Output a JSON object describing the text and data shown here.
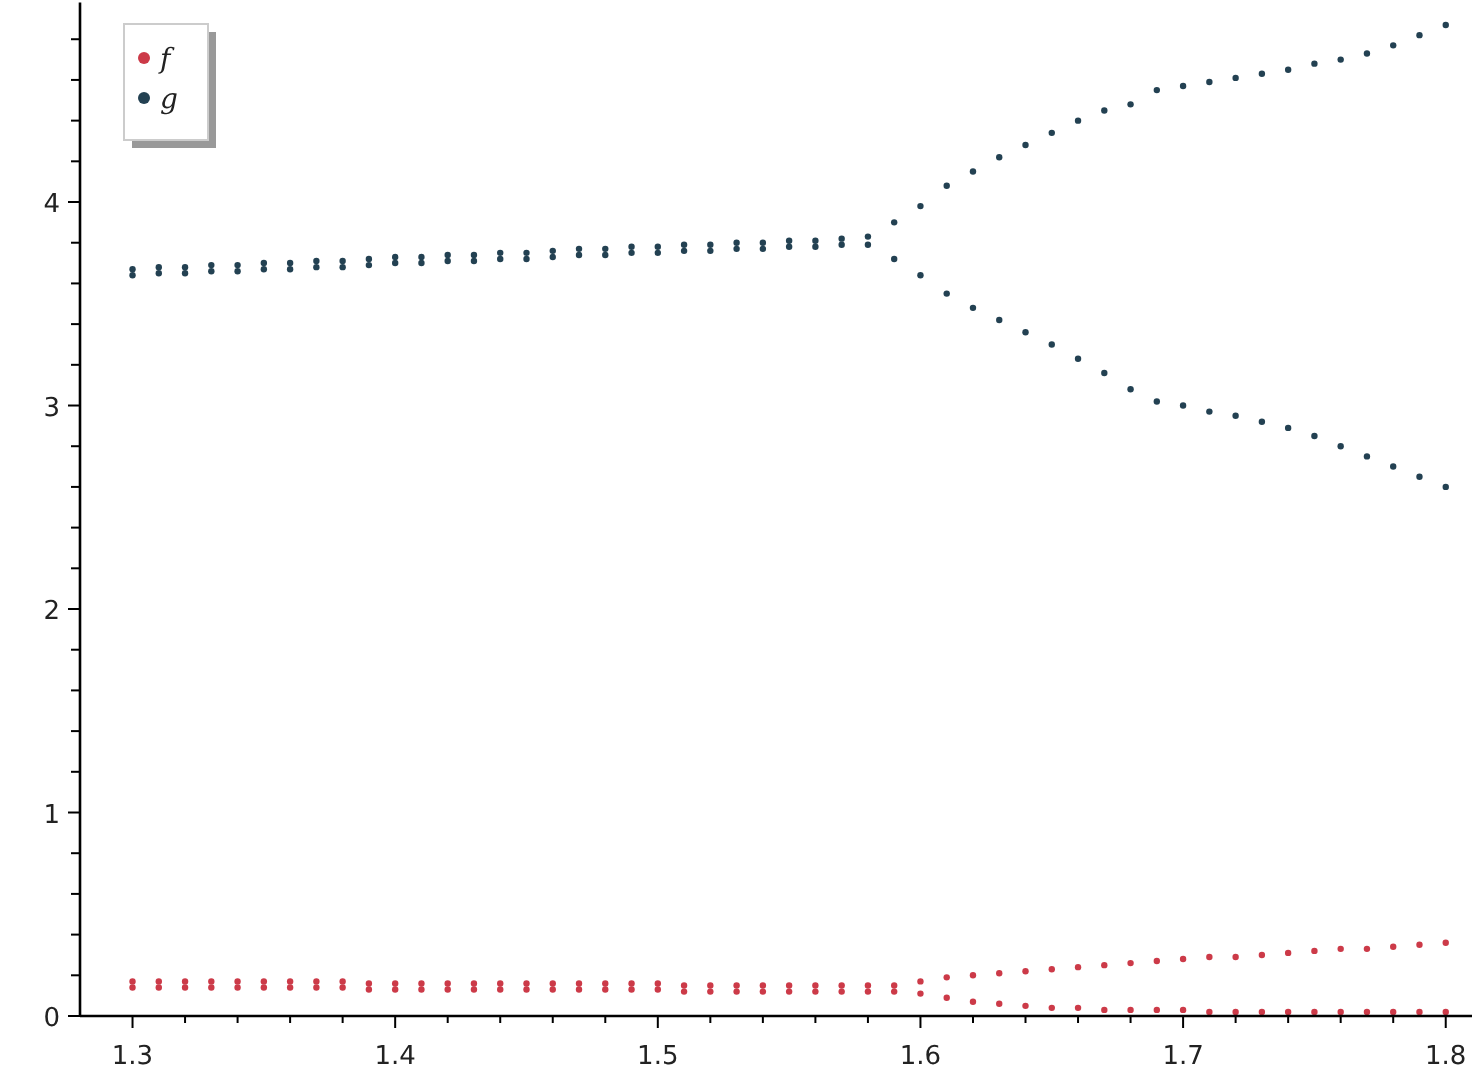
{
  "chart_data": {
    "type": "scatter",
    "marker": "circle",
    "legend": "top left",
    "grid": false,
    "xlim": [
      1.28,
      1.81
    ],
    "ylim": [
      0,
      4.98
    ],
    "xticks": [
      {
        "value": 1.3,
        "label": "1.3"
      },
      {
        "value": 1.32,
        "label": null
      },
      {
        "value": 1.34,
        "label": null
      },
      {
        "value": 1.36,
        "label": null
      },
      {
        "value": 1.38,
        "label": null
      },
      {
        "value": 1.4,
        "label": "1.4"
      },
      {
        "value": 1.42,
        "label": null
      },
      {
        "value": 1.44,
        "label": null
      },
      {
        "value": 1.46,
        "label": null
      },
      {
        "value": 1.48,
        "label": null
      },
      {
        "value": 1.5,
        "label": "1.5"
      },
      {
        "value": 1.52,
        "label": null
      },
      {
        "value": 1.54,
        "label": null
      },
      {
        "value": 1.56,
        "label": null
      },
      {
        "value": 1.58,
        "label": null
      },
      {
        "value": 1.6,
        "label": "1.6"
      },
      {
        "value": 1.62,
        "label": null
      },
      {
        "value": 1.64,
        "label": null
      },
      {
        "value": 1.66,
        "label": null
      },
      {
        "value": 1.68,
        "label": null
      },
      {
        "value": 1.7,
        "label": "1.7"
      },
      {
        "value": 1.72,
        "label": null
      },
      {
        "value": 1.74,
        "label": null
      },
      {
        "value": 1.76,
        "label": null
      },
      {
        "value": 1.78,
        "label": null
      },
      {
        "value": 1.8,
        "label": "1.8"
      }
    ],
    "yticks": [
      0,
      {
        "value": 0.2,
        "label": null
      },
      {
        "value": 0.4,
        "label": null
      },
      {
        "value": 0.6,
        "label": null
      },
      {
        "value": 0.8,
        "label": null
      },
      1,
      {
        "value": 1.2,
        "label": null
      },
      {
        "value": 1.4,
        "label": null
      },
      {
        "value": 1.6,
        "label": null
      },
      {
        "value": 1.8,
        "label": null
      },
      2,
      {
        "value": 2.2,
        "label": null
      },
      {
        "value": 2.4,
        "label": null
      },
      {
        "value": 2.6,
        "label": null
      },
      {
        "value": 2.8,
        "label": null
      },
      3,
      {
        "value": 3.2,
        "label": null
      },
      {
        "value": 3.4,
        "label": null
      },
      {
        "value": 3.6,
        "label": null
      },
      {
        "value": 3.8,
        "label": null
      },
      4,
      {
        "value": 4.2,
        "label": null
      },
      {
        "value": 4.4,
        "label": null
      },
      {
        "value": 4.6,
        "label": null
      },
      {
        "value": 4.8,
        "label": null
      }
    ],
    "series": [
      {
        "name": "f",
        "color": "#cc3a48",
        "x": [
          1.3,
          1.31,
          1.32,
          1.33,
          1.34,
          1.35,
          1.36,
          1.37,
          1.38,
          1.39,
          1.4,
          1.41,
          1.42,
          1.43,
          1.44,
          1.45,
          1.46,
          1.47,
          1.48,
          1.49,
          1.5,
          1.51,
          1.52,
          1.53,
          1.54,
          1.55,
          1.56,
          1.57,
          1.58,
          1.59,
          1.6,
          1.61,
          1.62,
          1.63,
          1.64,
          1.65,
          1.66,
          1.67,
          1.68,
          1.69,
          1.7,
          1.71,
          1.72,
          1.73,
          1.74,
          1.75,
          1.76,
          1.77,
          1.78,
          1.79,
          1.8,
          1.3,
          1.31,
          1.32,
          1.33,
          1.34,
          1.35,
          1.36,
          1.37,
          1.38,
          1.39,
          1.4,
          1.41,
          1.42,
          1.43,
          1.44,
          1.45,
          1.46,
          1.47,
          1.48,
          1.49,
          1.5,
          1.51,
          1.52,
          1.53,
          1.54,
          1.55,
          1.56,
          1.57,
          1.58,
          1.59,
          1.6,
          1.61,
          1.62,
          1.63,
          1.64,
          1.65,
          1.66,
          1.67,
          1.68,
          1.69,
          1.7,
          1.71,
          1.72,
          1.73,
          1.74,
          1.75,
          1.76,
          1.77,
          1.78,
          1.79,
          1.8
        ],
        "values": [
          0.17,
          0.17,
          0.17,
          0.17,
          0.17,
          0.17,
          0.17,
          0.17,
          0.17,
          0.16,
          0.16,
          0.16,
          0.16,
          0.16,
          0.16,
          0.16,
          0.16,
          0.16,
          0.16,
          0.16,
          0.16,
          0.15,
          0.15,
          0.15,
          0.15,
          0.15,
          0.15,
          0.15,
          0.15,
          0.15,
          0.17,
          0.19,
          0.2,
          0.21,
          0.22,
          0.23,
          0.24,
          0.25,
          0.26,
          0.27,
          0.28,
          0.29,
          0.29,
          0.3,
          0.31,
          0.32,
          0.33,
          0.33,
          0.34,
          0.35,
          0.36,
          0.14,
          0.14,
          0.14,
          0.14,
          0.14,
          0.14,
          0.14,
          0.14,
          0.14,
          0.13,
          0.13,
          0.13,
          0.13,
          0.13,
          0.13,
          0.13,
          0.13,
          0.13,
          0.13,
          0.13,
          0.13,
          0.12,
          0.12,
          0.12,
          0.12,
          0.12,
          0.12,
          0.12,
          0.12,
          0.12,
          0.11,
          0.09,
          0.07,
          0.06,
          0.05,
          0.04,
          0.04,
          0.03,
          0.03,
          0.03,
          0.03,
          0.02,
          0.02,
          0.02,
          0.02,
          0.02,
          0.02,
          0.02,
          0.02,
          0.02,
          0.02
        ]
      },
      {
        "name": "g",
        "color": "#234152",
        "x": [
          1.3,
          1.31,
          1.32,
          1.33,
          1.34,
          1.35,
          1.36,
          1.37,
          1.38,
          1.39,
          1.4,
          1.41,
          1.42,
          1.43,
          1.44,
          1.45,
          1.46,
          1.47,
          1.48,
          1.49,
          1.5,
          1.51,
          1.52,
          1.53,
          1.54,
          1.55,
          1.56,
          1.57,
          1.58,
          1.59,
          1.6,
          1.61,
          1.62,
          1.63,
          1.64,
          1.65,
          1.66,
          1.67,
          1.68,
          1.69,
          1.7,
          1.71,
          1.72,
          1.73,
          1.74,
          1.75,
          1.76,
          1.77,
          1.78,
          1.79,
          1.8,
          1.3,
          1.31,
          1.32,
          1.33,
          1.34,
          1.35,
          1.36,
          1.37,
          1.38,
          1.39,
          1.4,
          1.41,
          1.42,
          1.43,
          1.44,
          1.45,
          1.46,
          1.47,
          1.48,
          1.49,
          1.5,
          1.51,
          1.52,
          1.53,
          1.54,
          1.55,
          1.56,
          1.57,
          1.58,
          1.59,
          1.6,
          1.61,
          1.62,
          1.63,
          1.64,
          1.65,
          1.66,
          1.67,
          1.68,
          1.69,
          1.7,
          1.71,
          1.72,
          1.73,
          1.74,
          1.75,
          1.76,
          1.77,
          1.78,
          1.79,
          1.8
        ],
        "values": [
          3.67,
          3.68,
          3.68,
          3.69,
          3.69,
          3.7,
          3.7,
          3.71,
          3.71,
          3.72,
          3.73,
          3.73,
          3.74,
          3.74,
          3.75,
          3.75,
          3.76,
          3.77,
          3.77,
          3.78,
          3.78,
          3.79,
          3.79,
          3.8,
          3.8,
          3.81,
          3.81,
          3.82,
          3.83,
          3.9,
          3.98,
          4.08,
          4.15,
          4.22,
          4.28,
          4.34,
          4.4,
          4.45,
          4.48,
          4.55,
          4.57,
          4.59,
          4.61,
          4.63,
          4.65,
          4.68,
          4.7,
          4.73,
          4.77,
          4.82,
          4.87,
          3.64,
          3.65,
          3.65,
          3.66,
          3.66,
          3.67,
          3.67,
          3.68,
          3.68,
          3.69,
          3.7,
          3.7,
          3.71,
          3.71,
          3.72,
          3.72,
          3.73,
          3.74,
          3.74,
          3.75,
          3.75,
          3.76,
          3.76,
          3.77,
          3.77,
          3.78,
          3.78,
          3.79,
          3.79,
          3.72,
          3.64,
          3.55,
          3.48,
          3.42,
          3.36,
          3.3,
          3.23,
          3.16,
          3.08,
          3.02,
          3.0,
          2.97,
          2.95,
          2.92,
          2.89,
          2.85,
          2.8,
          2.75,
          2.7,
          2.65,
          2.6
        ]
      }
    ]
  }
}
